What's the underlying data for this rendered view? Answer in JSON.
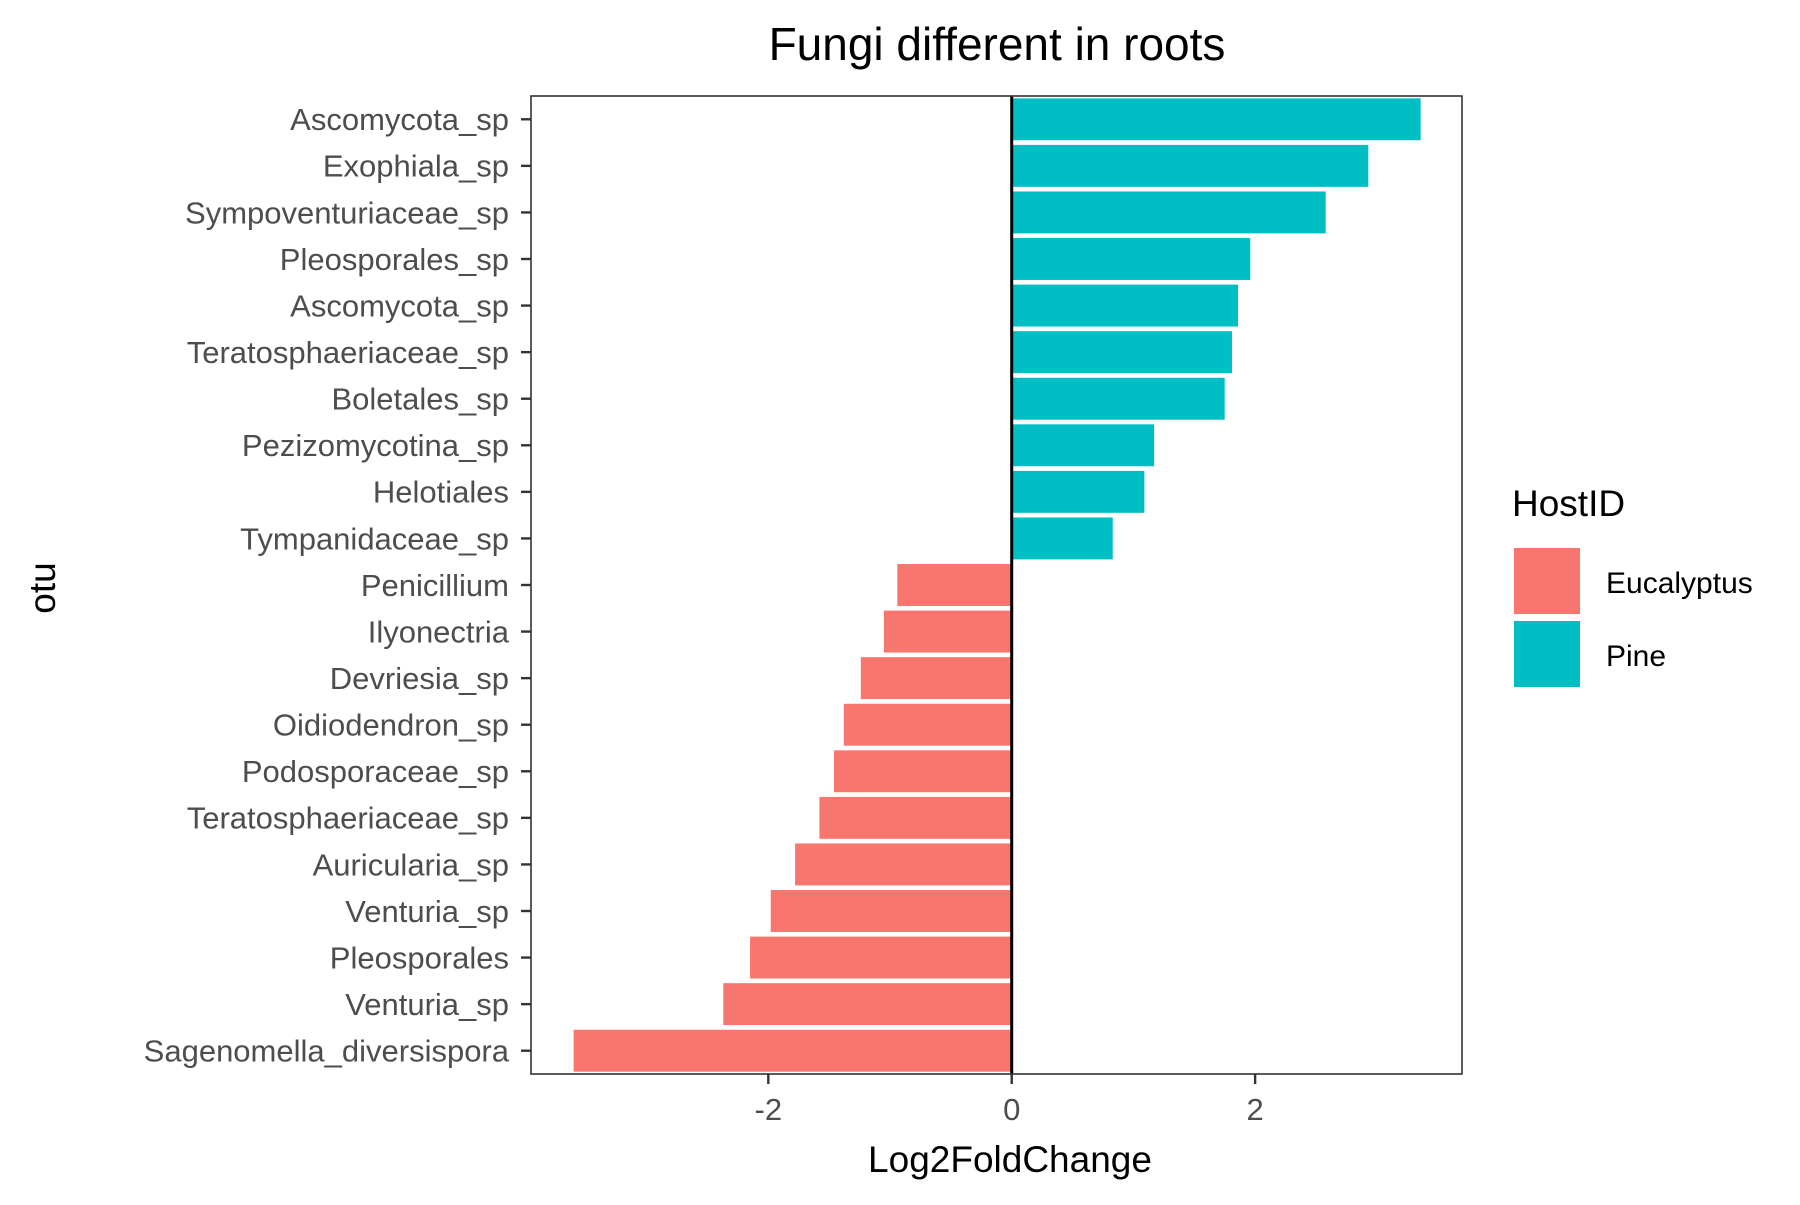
{
  "chart_data": {
    "type": "bar",
    "orientation": "horizontal",
    "title": "Fungi different in roots",
    "xlabel": "Log2FoldChange",
    "ylabel": "otu",
    "xlim": [
      -3.95,
      3.7
    ],
    "xticks": [
      -2,
      0,
      2
    ],
    "xtick_labels": [
      "-2",
      "0",
      "2"
    ],
    "grid": false,
    "reference_line": 0,
    "legend": {
      "title": "HostID",
      "placement": "right",
      "entries": [
        {
          "name": "Eucalyptus",
          "color": "#F8766D"
        },
        {
          "name": "Pine",
          "color": "#00BFC4"
        }
      ]
    },
    "categories": [
      "Ascomycota_sp",
      "Exophiala_sp",
      "Sympoventuriaceae_sp",
      "Pleosporales_sp",
      "Ascomycota_sp",
      "Teratosphaeriaceae_sp",
      "Boletales_sp",
      "Pezizomycotina_sp",
      "Helotiales",
      "Tympanidaceae_sp",
      "Penicillium",
      "Ilyonectria",
      "Devriesia_sp",
      "Oidiodendron_sp",
      "Podosporaceae_sp",
      "Teratosphaeriaceae_sp",
      "Auricularia_sp",
      "Venturia_sp",
      "Pleosporales",
      "Venturia_sp",
      "Sagenomella_diversispora"
    ],
    "values": [
      3.36,
      2.93,
      2.58,
      1.96,
      1.86,
      1.81,
      1.75,
      1.17,
      1.09,
      0.83,
      -0.94,
      -1.05,
      -1.24,
      -1.38,
      -1.46,
      -1.58,
      -1.78,
      -1.98,
      -2.15,
      -2.37,
      -3.6
    ],
    "host": [
      "Pine",
      "Pine",
      "Pine",
      "Pine",
      "Pine",
      "Pine",
      "Pine",
      "Pine",
      "Pine",
      "Pine",
      "Eucalyptus",
      "Eucalyptus",
      "Eucalyptus",
      "Eucalyptus",
      "Eucalyptus",
      "Eucalyptus",
      "Eucalyptus",
      "Eucalyptus",
      "Eucalyptus",
      "Eucalyptus",
      "Eucalyptus"
    ]
  }
}
